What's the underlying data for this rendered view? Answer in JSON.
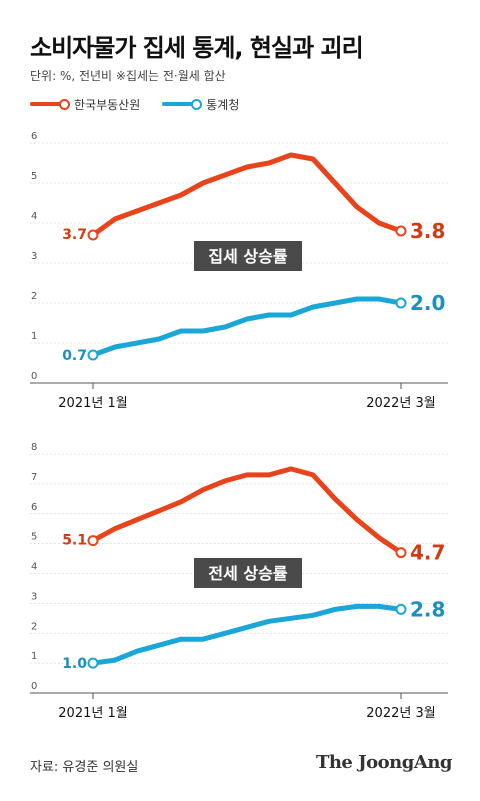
{
  "header": {
    "title": "소비자물가 집세 통계, 현실과 괴리",
    "unit": "단위: %, 전년비   ※집세는 전·월세 합산"
  },
  "legend": [
    {
      "label": "한국부동산원",
      "color": "#e8431a"
    },
    {
      "label": "통계청",
      "color": "#1aa6d6"
    }
  ],
  "chart_data": [
    {
      "type": "line",
      "annotation": "집세 상승률",
      "ylim": [
        0,
        6
      ],
      "y_ticks": [
        "0",
        "1",
        "2",
        "3",
        "4",
        "5",
        "6"
      ],
      "x_labels": [
        "2021년 1월",
        "2022년 3월"
      ],
      "series": [
        {
          "name": "한국부동산원",
          "color": "#e8431a",
          "values": [
            3.7,
            4.1,
            4.3,
            4.5,
            4.7,
            5.0,
            5.2,
            5.4,
            5.5,
            5.7,
            5.6,
            5.0,
            4.4,
            4.0,
            3.8
          ],
          "start_label": "3.7",
          "end_label": "3.8"
        },
        {
          "name": "통계청",
          "color": "#1aa6d6",
          "values": [
            0.7,
            0.9,
            1.0,
            1.1,
            1.3,
            1.3,
            1.4,
            1.6,
            1.7,
            1.7,
            1.9,
            2.0,
            2.1,
            2.1,
            2.0
          ],
          "start_label": "0.7",
          "end_label": "2.0"
        }
      ]
    },
    {
      "type": "line",
      "annotation": "전세 상승률",
      "ylim": [
        0,
        8
      ],
      "y_ticks": [
        "0",
        "1",
        "2",
        "3",
        "4",
        "5",
        "6",
        "7",
        "8"
      ],
      "x_labels": [
        "2021년 1월",
        "2022년 3월"
      ],
      "series": [
        {
          "name": "한국부동산원",
          "color": "#e8431a",
          "values": [
            5.1,
            5.5,
            5.8,
            6.1,
            6.4,
            6.8,
            7.1,
            7.3,
            7.3,
            7.5,
            7.3,
            6.5,
            5.8,
            5.2,
            4.7
          ],
          "start_label": "5.1",
          "end_label": "4.7"
        },
        {
          "name": "통계청",
          "color": "#1aa6d6",
          "values": [
            1.0,
            1.1,
            1.4,
            1.6,
            1.8,
            1.8,
            2.0,
            2.2,
            2.4,
            2.5,
            2.6,
            2.8,
            2.9,
            2.9,
            2.8
          ],
          "start_label": "1.0",
          "end_label": "2.8"
        }
      ]
    }
  ],
  "footer": {
    "source": "자료: 유경준 의원실",
    "logo": "The JoongAng"
  }
}
